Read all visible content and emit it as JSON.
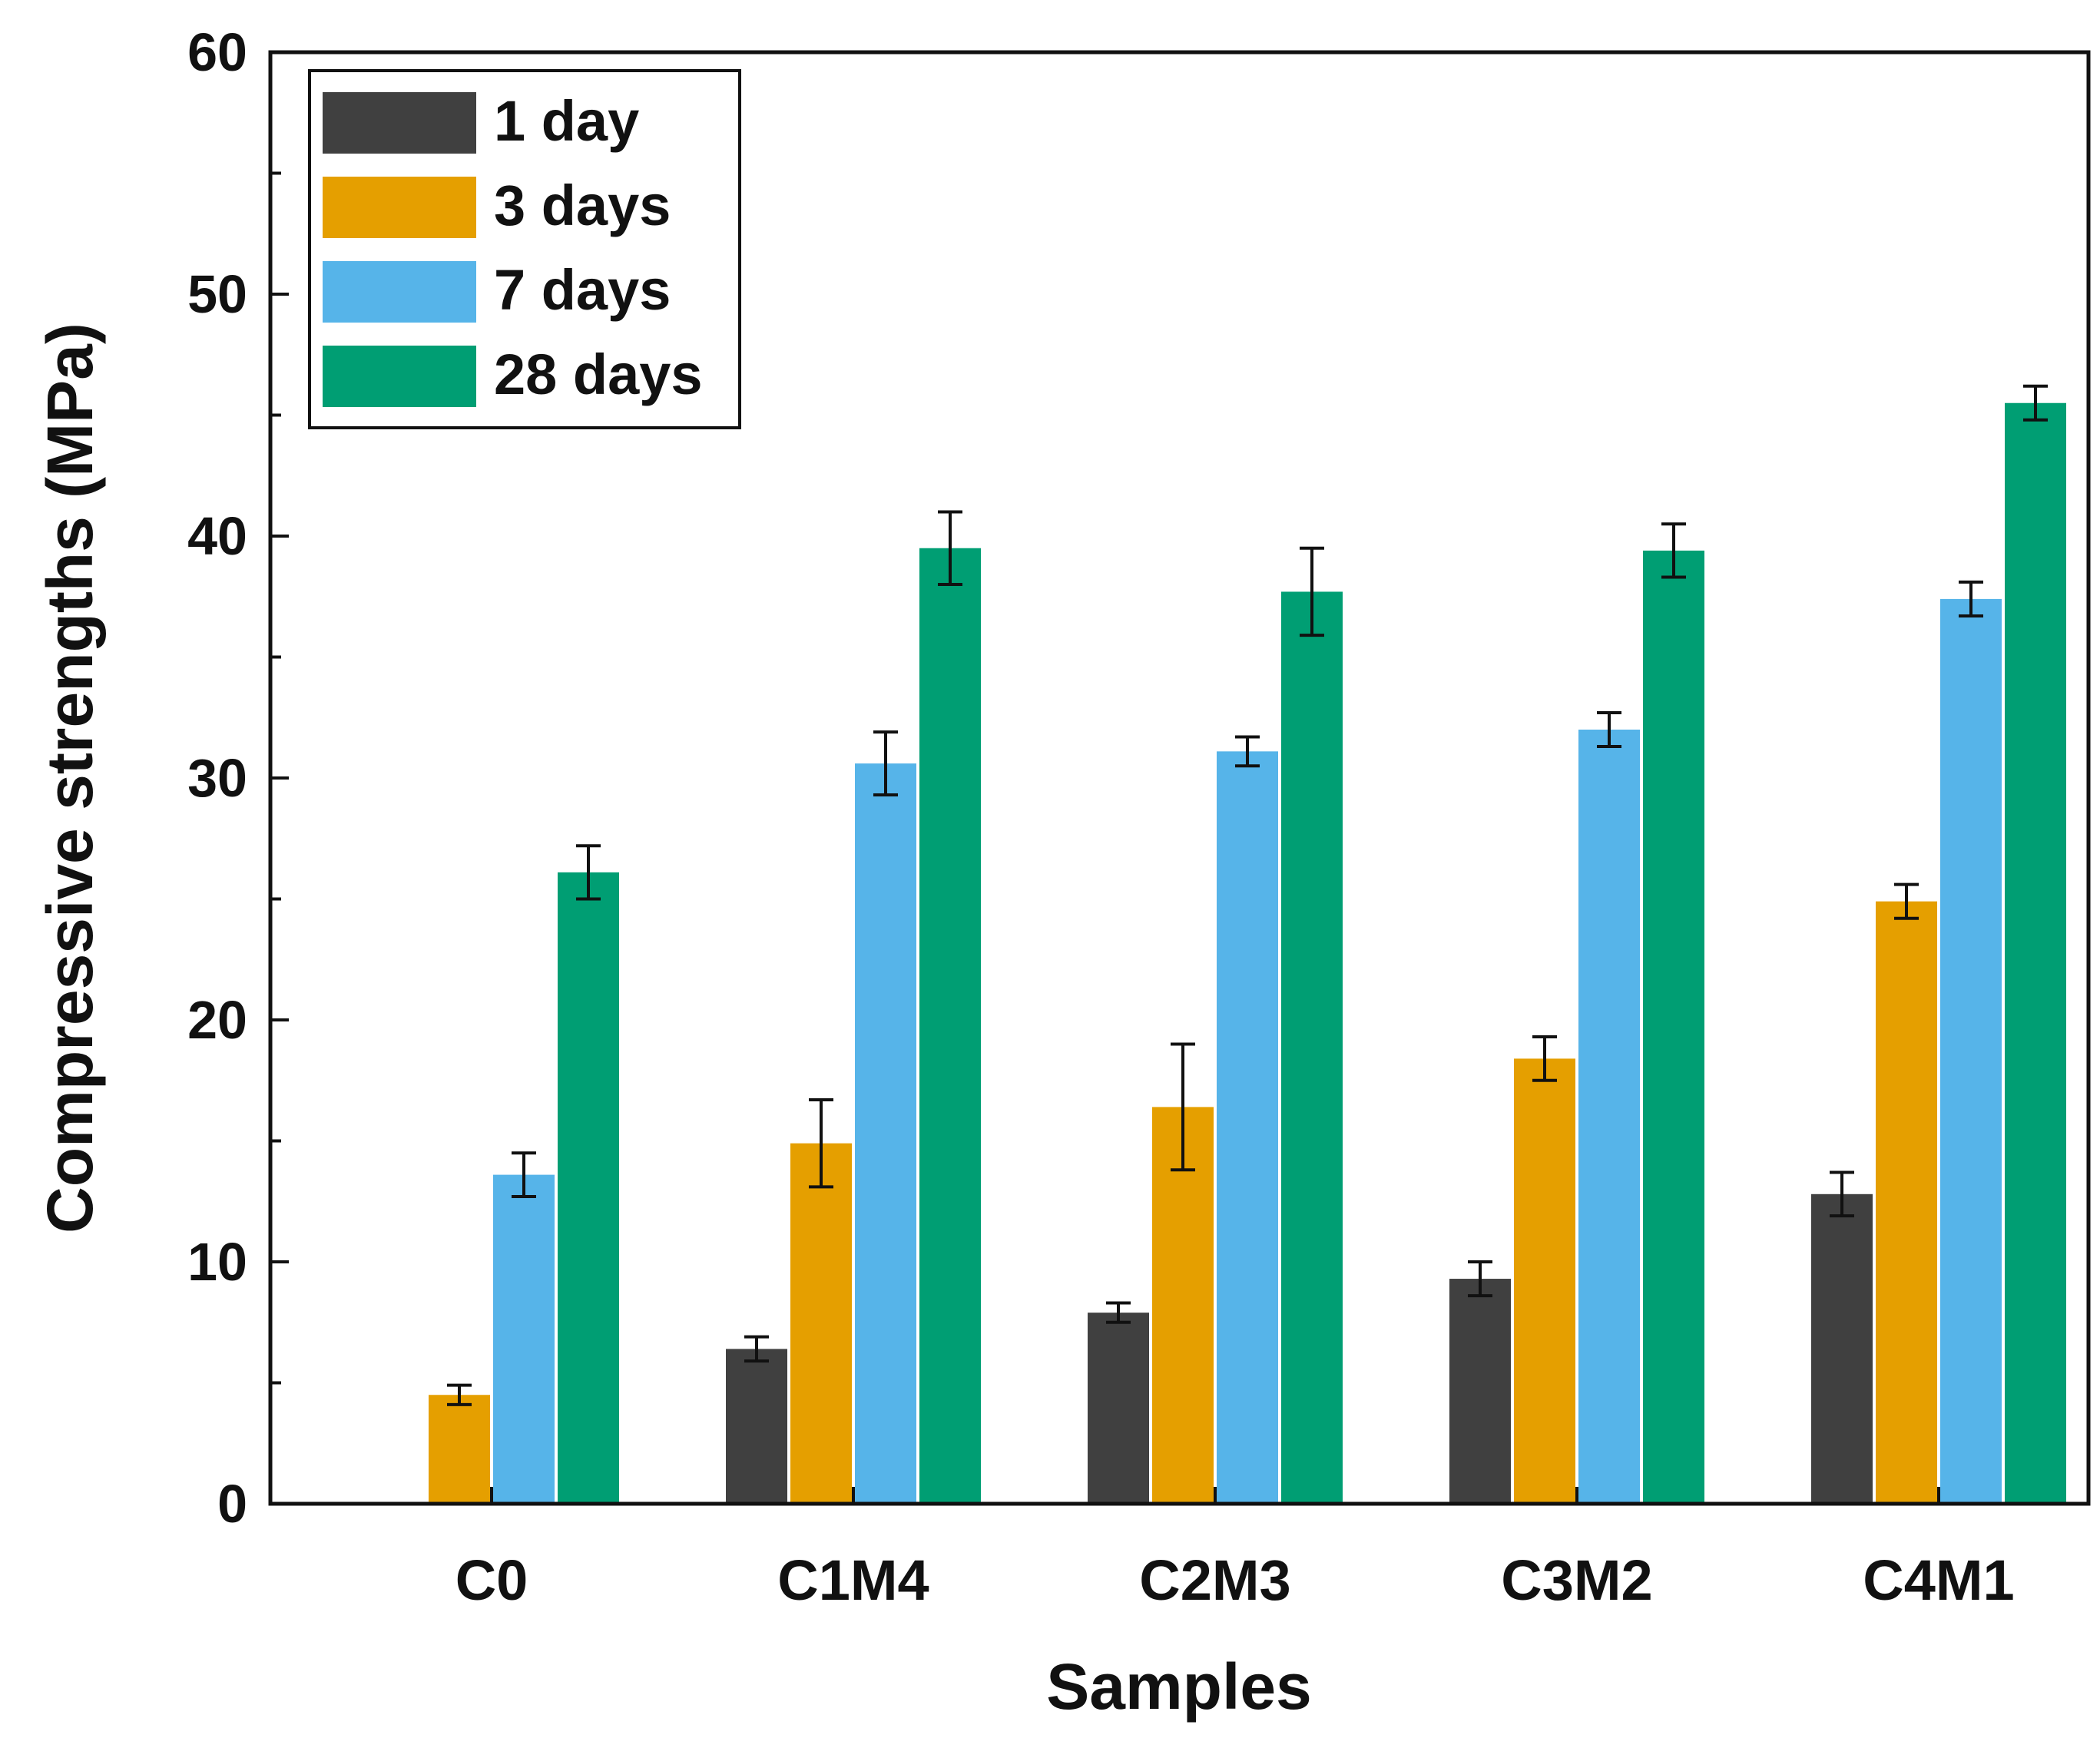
{
  "chart_data": {
    "type": "bar",
    "xlabel": "Samples",
    "ylabel": "Compressive strengths (MPa)",
    "ylim": [
      0,
      60
    ],
    "yticks": [
      "0",
      "10",
      "20",
      "30",
      "40",
      "50",
      "60"
    ],
    "categories": [
      "C0",
      "C1M4",
      "C2M3",
      "C3M2",
      "C4M1"
    ],
    "series": [
      {
        "name": "1 day",
        "color": "#404040",
        "values": [
          null,
          6.4,
          7.9,
          9.3,
          12.8
        ],
        "errors": [
          null,
          0.5,
          0.4,
          0.7,
          0.9
        ]
      },
      {
        "name": "3 days",
        "color": "#e59f00",
        "values": [
          4.5,
          14.9,
          16.4,
          18.4,
          24.9
        ],
        "errors": [
          0.4,
          1.8,
          2.6,
          0.9,
          0.7
        ]
      },
      {
        "name": "7 days",
        "color": "#56b4e9",
        "values": [
          13.6,
          30.6,
          31.1,
          32.0,
          37.4
        ],
        "errors": [
          0.9,
          1.3,
          0.6,
          0.7,
          0.7
        ]
      },
      {
        "name": "28 days",
        "color": "#009e73",
        "values": [
          26.1,
          39.5,
          37.7,
          39.4,
          45.5
        ],
        "errors": [
          1.1,
          1.5,
          1.8,
          1.1,
          0.7
        ]
      }
    ],
    "legend": "top-left",
    "grid": false
  }
}
